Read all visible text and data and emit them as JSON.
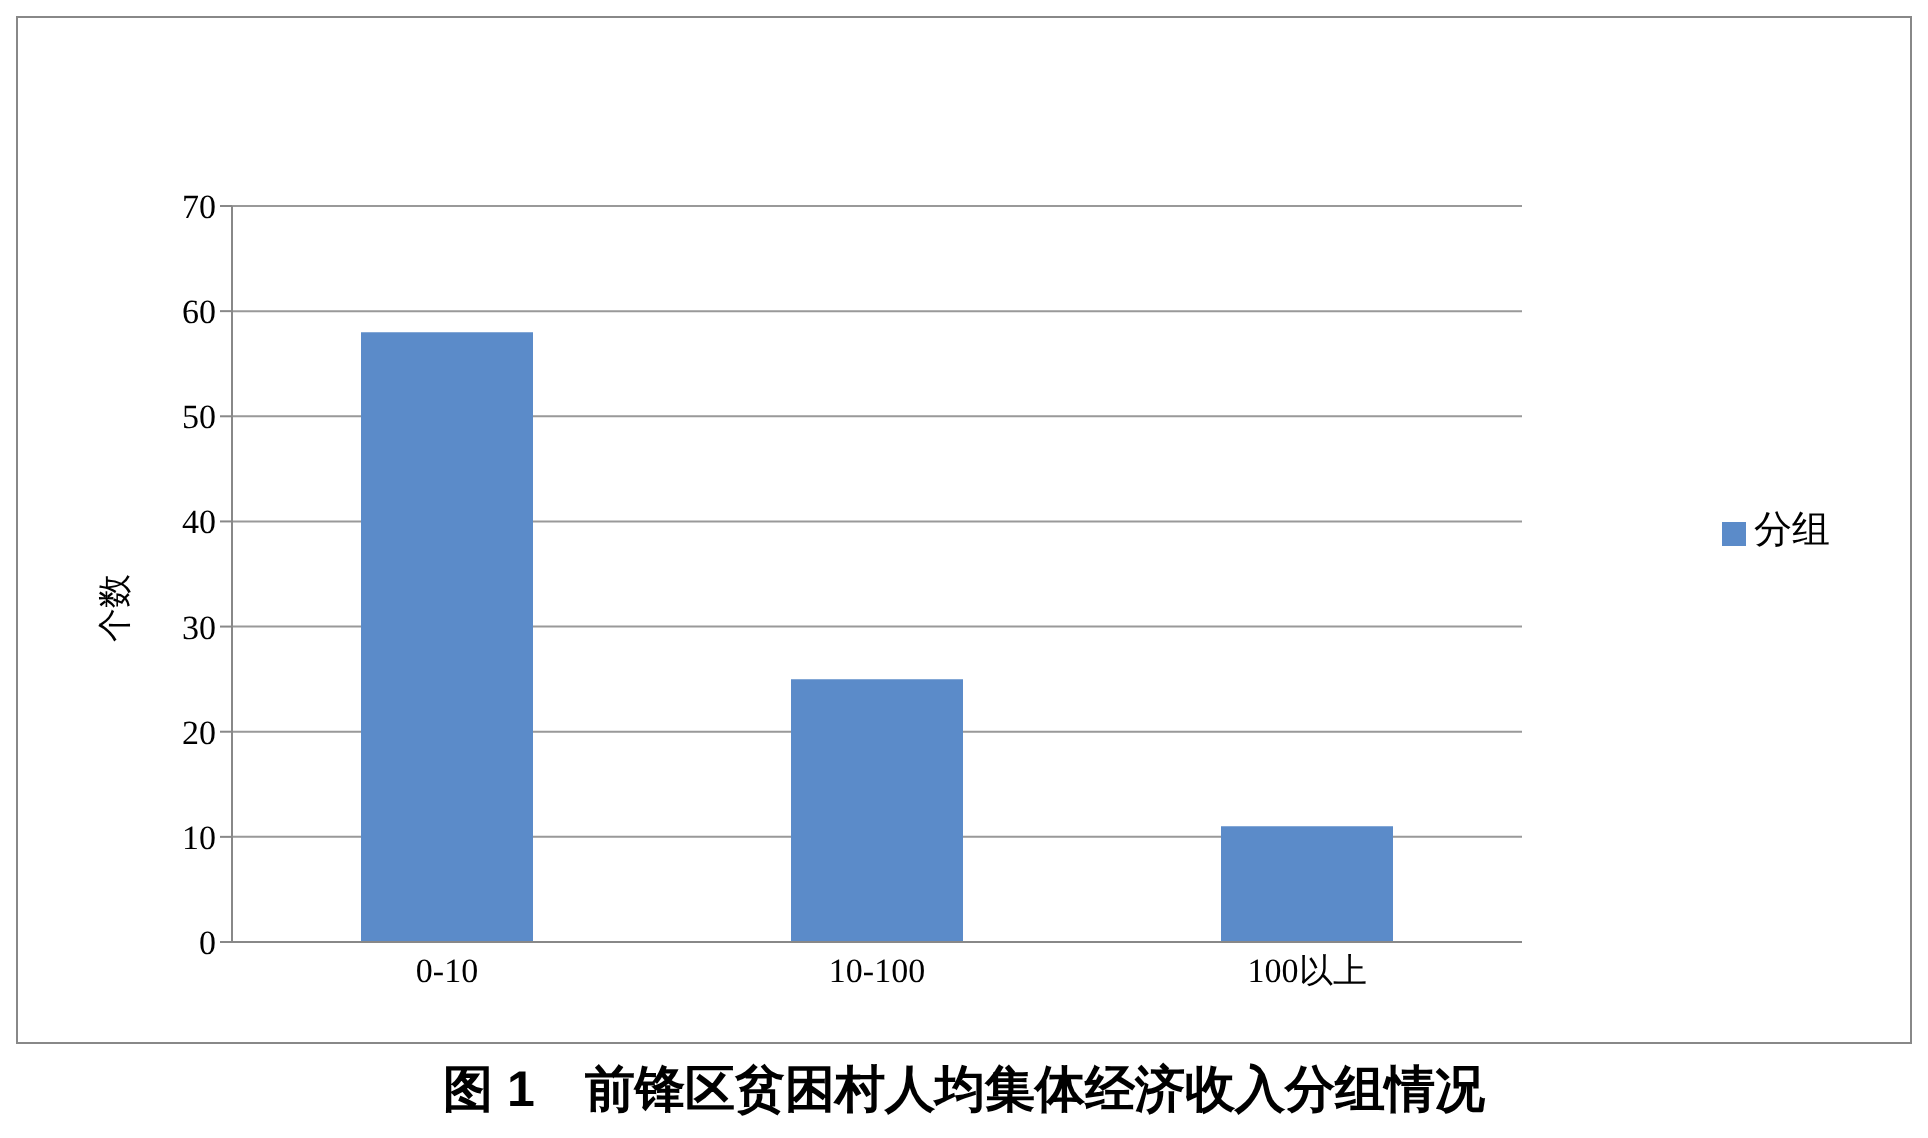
{
  "chart_data": {
    "type": "bar",
    "title": "图 1　前锋区贫困村人均集体经济收入分组情况",
    "ylabel": "个数",
    "categories": [
      "0-10",
      "10-100",
      "100以上"
    ],
    "series": [
      {
        "name": "分组",
        "color": "#5b8bc9",
        "values": [
          58,
          25,
          11
        ]
      }
    ],
    "ylim": [
      0,
      70
    ],
    "yticks": [
      0,
      10,
      20,
      30,
      40,
      50,
      60,
      70
    ],
    "grid": "y",
    "legend": "right"
  }
}
